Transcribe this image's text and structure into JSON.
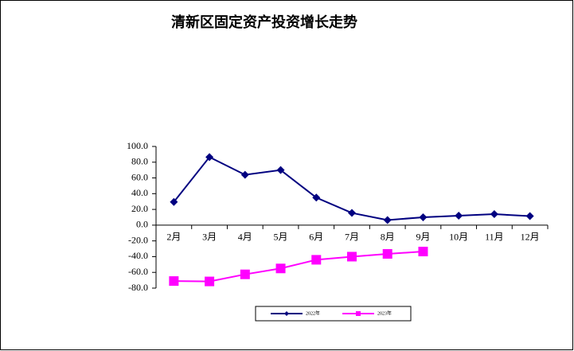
{
  "chart_data": {
    "type": "line",
    "title": "清新区固定资产投资增长走势",
    "categories": [
      "2月",
      "3月",
      "4月",
      "5月",
      "6月",
      "7月",
      "8月",
      "9月",
      "10月",
      "11月",
      "12月"
    ],
    "series": [
      {
        "name": "2022年",
        "color": "#000080",
        "marker": "diamond",
        "values": [
          29.5,
          86.5,
          64,
          70,
          35,
          15.5,
          6.5,
          10,
          12,
          14,
          11.5
        ]
      },
      {
        "name": "2023年",
        "color": "#ff00ff",
        "marker": "square",
        "values": [
          -71,
          -71.5,
          -62.5,
          -55,
          -44,
          -40,
          -36.5,
          -33.5,
          null,
          null,
          null
        ]
      }
    ],
    "ylim": [
      -80,
      100
    ],
    "yticks": [
      {
        "value": -80,
        "label": "-80.0"
      },
      {
        "value": -60,
        "label": "-60.0"
      },
      {
        "value": -40,
        "label": "-40.0"
      },
      {
        "value": -20,
        "label": "-20.0"
      },
      {
        "value": 0,
        "label": "0.0"
      },
      {
        "value": 20,
        "label": "20.0"
      },
      {
        "value": 40,
        "label": "40.0"
      },
      {
        "value": 60,
        "label": "60.0"
      },
      {
        "value": 80,
        "label": "80.0"
      },
      {
        "value": 100,
        "label": "100.0"
      }
    ],
    "grid": false,
    "legend": "bottom"
  }
}
